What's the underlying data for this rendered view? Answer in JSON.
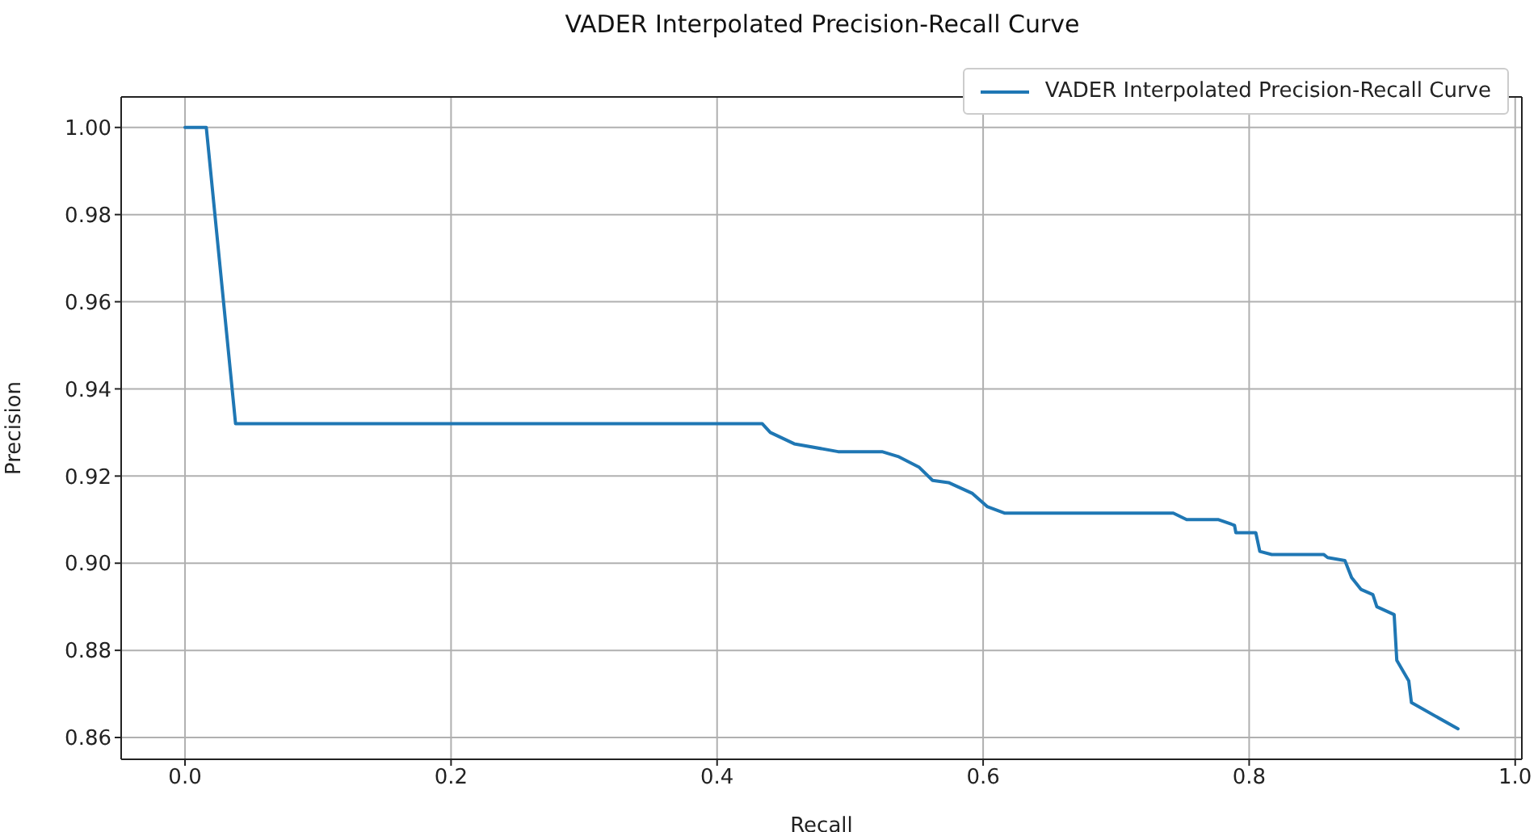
{
  "chart_data": {
    "type": "line",
    "title": "VADER Interpolated Precision-Recall Curve",
    "xlabel": "Recall",
    "ylabel": "Precision",
    "xlim": [
      -0.048,
      1.005
    ],
    "xticks": [
      {
        "value": 0,
        "label": "0.0"
      },
      {
        "value": 0.2,
        "label": "0.2"
      },
      {
        "value": 0.4,
        "label": "0.4"
      },
      {
        "value": 0.6,
        "label": "0.6"
      },
      {
        "value": 0.8,
        "label": "0.8"
      },
      {
        "value": 1,
        "label": "1.0"
      }
    ],
    "ylim": [
      0.855,
      1.007
    ],
    "yticks": [
      {
        "value": 0.86,
        "label": "0.86"
      },
      {
        "value": 0.88,
        "label": "0.88"
      },
      {
        "value": 0.9,
        "label": "0.90"
      },
      {
        "value": 0.92,
        "label": "0.92"
      },
      {
        "value": 0.94,
        "label": "0.94"
      },
      {
        "value": 0.96,
        "label": "0.96"
      },
      {
        "value": 0.98,
        "label": "0.98"
      },
      {
        "value": 1,
        "label": "1.00"
      }
    ],
    "grid": true,
    "legend": "top right",
    "marker": "none",
    "line_style": "solid",
    "series": [
      {
        "name": "VADER Interpolated Precision-Recall Curve",
        "color": "#1f77b4",
        "x": [
          0,
          0.016,
          0.038,
          0.434,
          0.44,
          0.458,
          0.491,
          0.524,
          0.536,
          0.552,
          0.562,
          0.574,
          0.592,
          0.603,
          0.616,
          0.743,
          0.753,
          0.777,
          0.789,
          0.79,
          0.805,
          0.808,
          0.817,
          0.856,
          0.859,
          0.872,
          0.877,
          0.884,
          0.893,
          0.896,
          0.909,
          0.911,
          0.92,
          0.922,
          0.957
        ],
        "values": [
          1,
          1,
          0.932,
          0.932,
          0.93,
          0.9274,
          0.9256,
          0.9256,
          0.9245,
          0.922,
          0.919,
          0.9185,
          0.916,
          0.913,
          0.9115,
          0.9115,
          0.91,
          0.91,
          0.9087,
          0.907,
          0.907,
          0.9027,
          0.902,
          0.902,
          0.9013,
          0.9006,
          0.8967,
          0.894,
          0.8928,
          0.89,
          0.8882,
          0.8777,
          0.873,
          0.868,
          0.862
        ]
      }
    ]
  }
}
